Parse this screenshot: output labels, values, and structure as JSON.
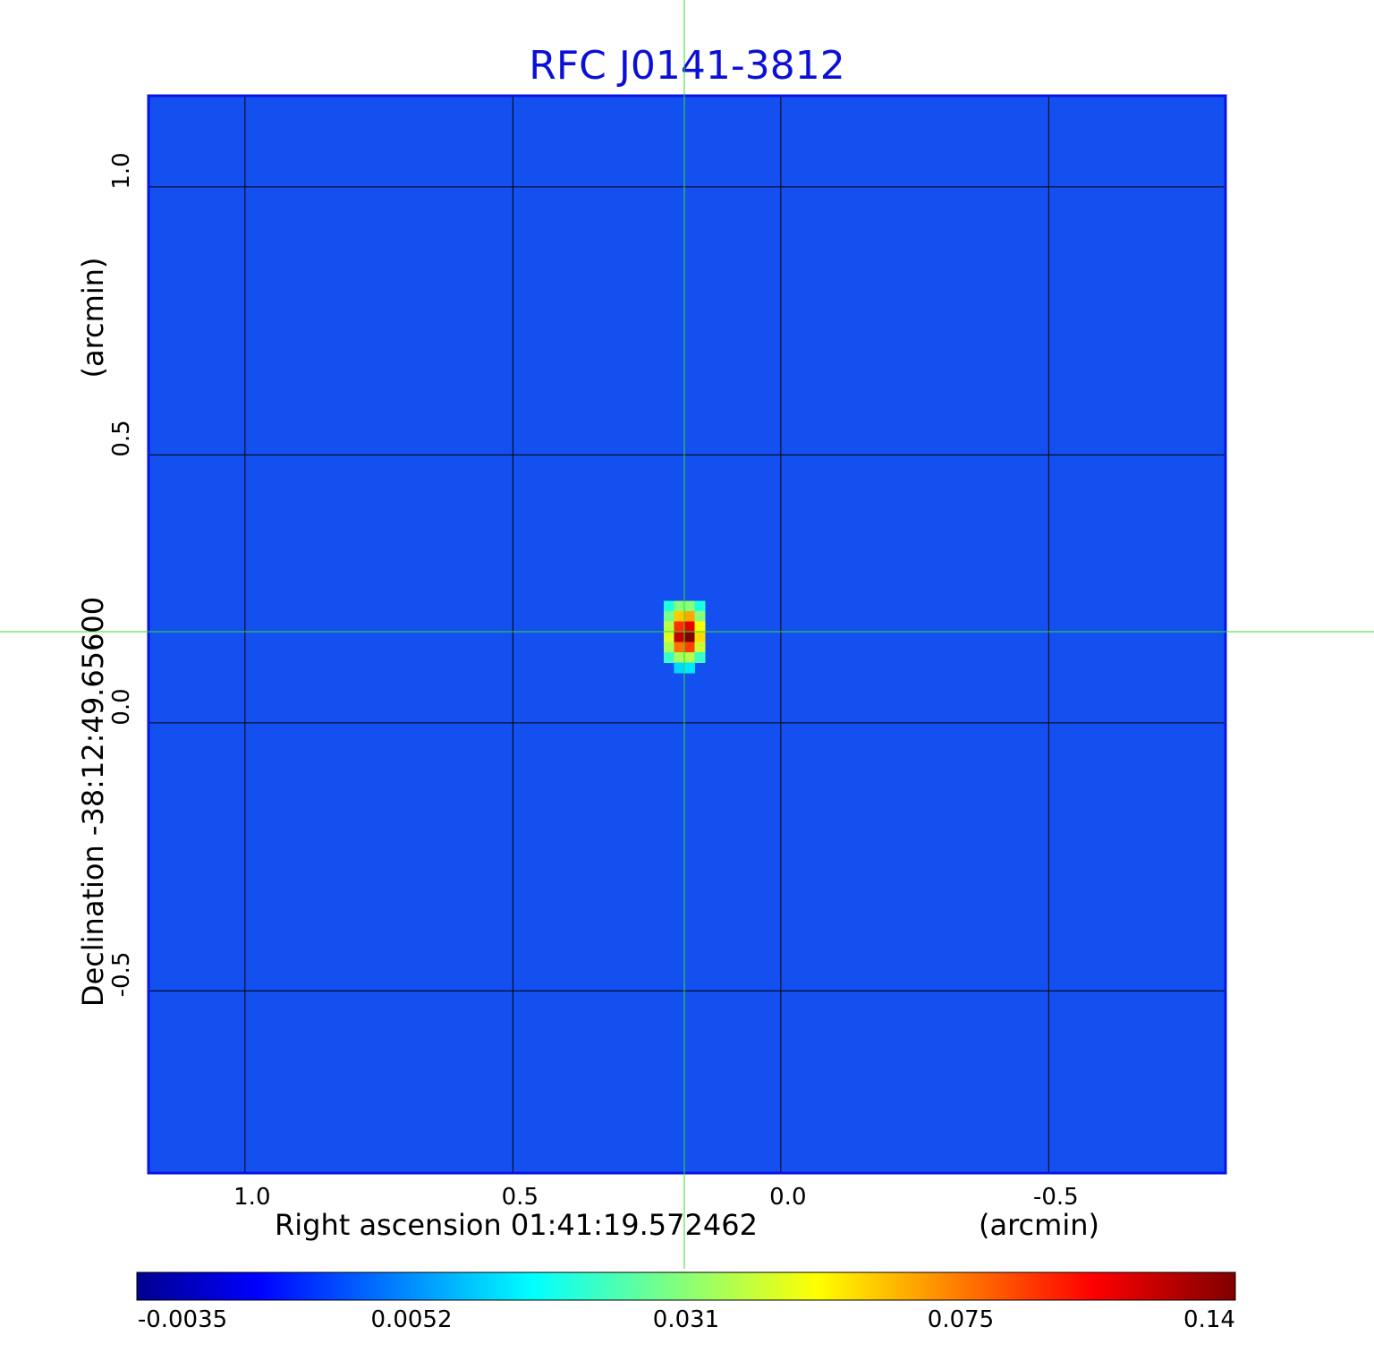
{
  "title": "RFC J0141-3812",
  "chart_data": {
    "type": "heatmap",
    "title": "RFC J0141-3812",
    "xlabel": "Right ascension  01:41:19.572462",
    "xunit": "(arcmin)",
    "ylabel": "Declination  -38:12:49.65600",
    "yunit": "(arcmin)",
    "x_ticks": [
      1.0,
      0.5,
      0.0,
      -0.5
    ],
    "x_tick_labels": [
      "1.0",
      "0.5",
      "0.0",
      "-0.5"
    ],
    "y_ticks": [
      1.0,
      0.5,
      0.0,
      -0.5
    ],
    "y_tick_labels": [
      "1.0",
      "0.5",
      "0.0",
      "-0.5"
    ],
    "xlim": [
      1.18,
      -0.83
    ],
    "ylim": [
      -0.84,
      1.17
    ],
    "grid": true,
    "crosshair": {
      "x": 0.18,
      "y": 0.17
    },
    "source": {
      "x": 0.18,
      "y": 0.17,
      "peak": 0.14
    },
    "background": 0.0,
    "colormap": "jet",
    "colorbar": {
      "tick_labels": [
        "-0.0035",
        "0.0052",
        "0.031",
        "0.075",
        "0.14"
      ],
      "min": -0.0035,
      "max": 0.14
    }
  },
  "colors": {
    "title": "#0b10d8",
    "grid": "#000000",
    "crosshair": "#33dd33",
    "frame": "#0a14e6",
    "background": "#1450f0"
  }
}
